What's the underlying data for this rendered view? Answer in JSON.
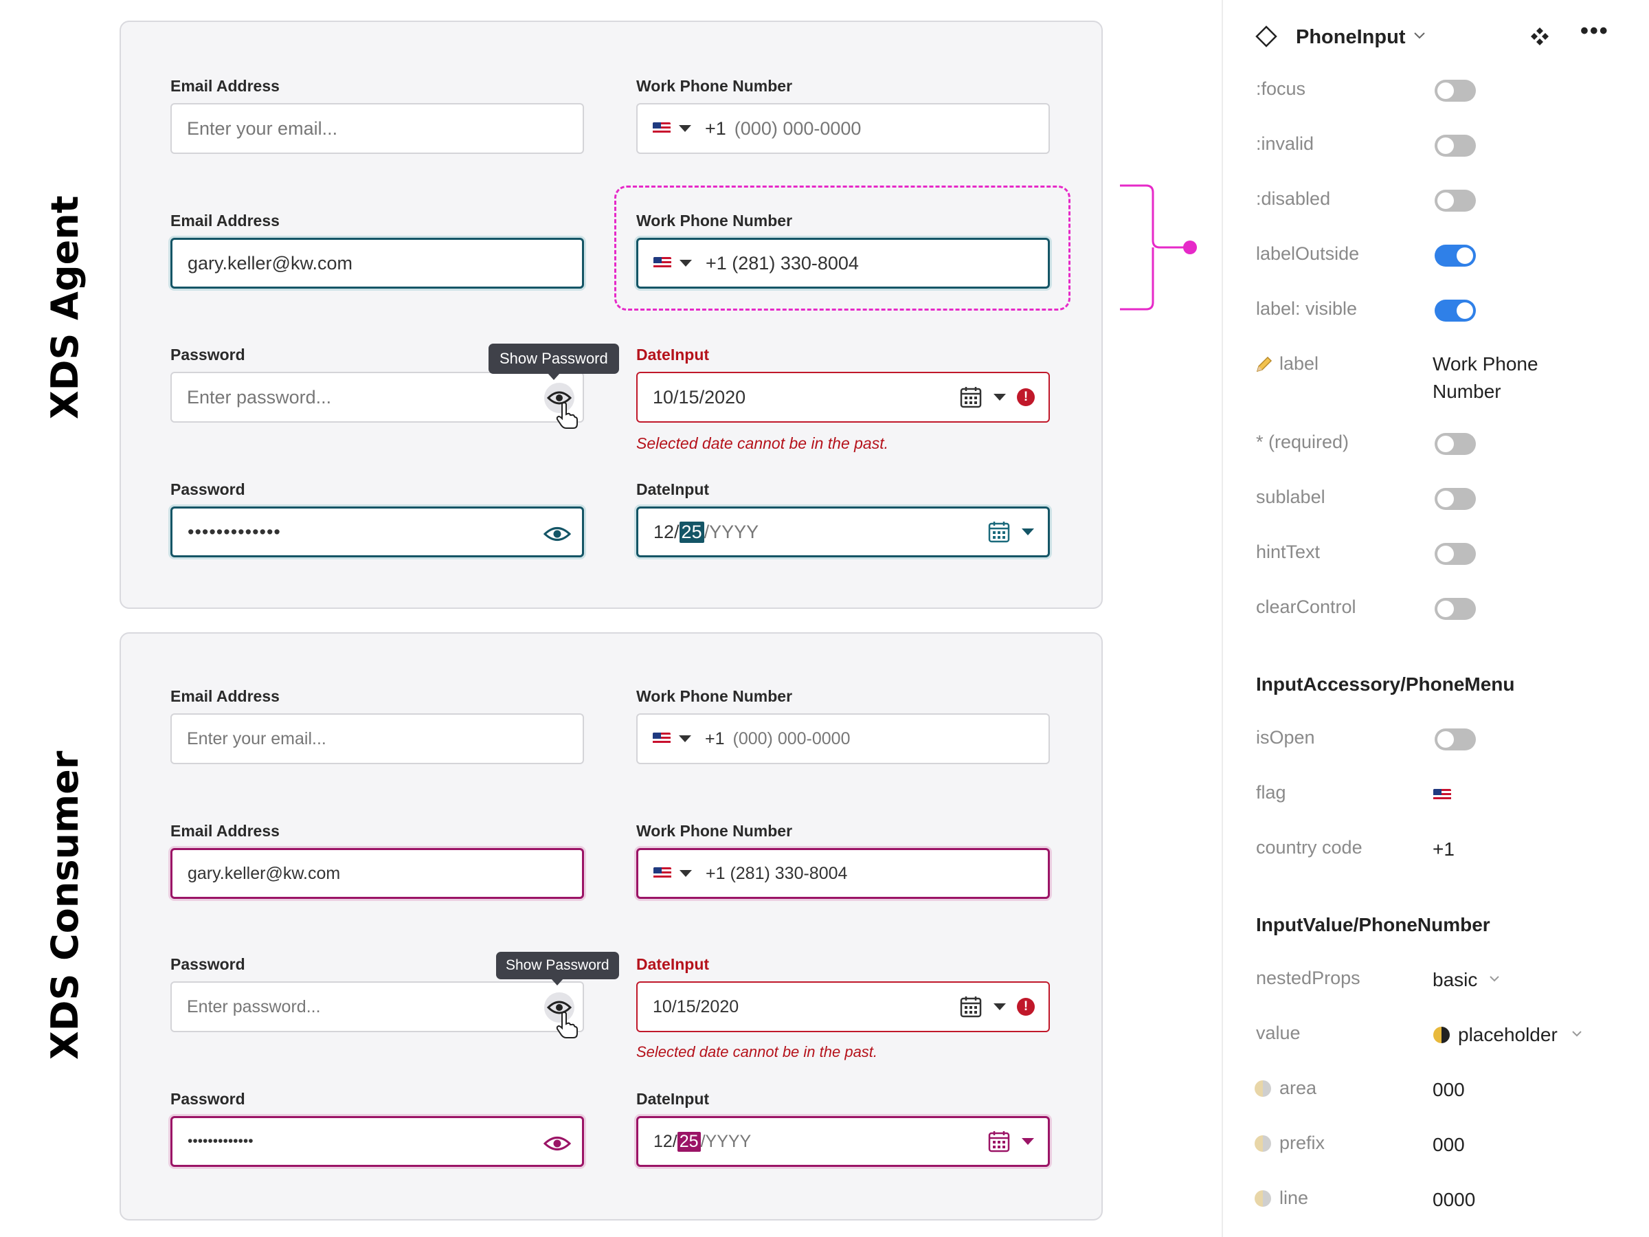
{
  "agent": {
    "title": "XDS Agent",
    "email1_label": "Email Address",
    "email1_placeholder": "Enter your email...",
    "phone1_label": "Work Phone Number",
    "phone1_value": "+1",
    "phone1_placeholder": "(000) 000-0000",
    "email2_label": "Email Address",
    "email2_value": "gary.keller@kw.com",
    "phone2_label": "Work Phone Number",
    "phone2_value": "+1 (281) 330-8004",
    "password1_label": "Password",
    "password1_placeholder": "Enter password...",
    "tooltip": "Show Password",
    "date1_label": "DateInput",
    "date1_value": "10/15/2020",
    "date_error": "Selected date cannot be in the past.",
    "password2_label": "Password",
    "password2_value": "•••••••••••••",
    "date2_label": "DateInput",
    "date2_month": "12/",
    "date2_day": "25",
    "date2_year": "/YYYY"
  },
  "consumer": {
    "title": "XDS Consumer",
    "email1_label": "Email Address",
    "email1_placeholder": "Enter your email...",
    "phone1_label": "Work Phone Number",
    "phone1_value": "+1",
    "phone1_placeholder": "(000) 000-0000",
    "email2_label": "Email Address",
    "email2_value": "gary.keller@kw.com",
    "phone2_label": "Work Phone Number",
    "phone2_value": "+1 (281) 330-8004",
    "password1_label": "Password",
    "password1_placeholder": "Enter password...",
    "tooltip": "Show Password",
    "date1_label": "DateInput",
    "date1_value": "10/15/2020",
    "date_error": "Selected date cannot be in the past.",
    "password2_label": "Password",
    "password2_value": "•••••••••••••",
    "date2_label": "DateInput",
    "date2_month": "12/",
    "date2_day": "25",
    "date2_year": "/YYYY"
  },
  "props": {
    "component_name": "PhoneInput",
    "toggles": [
      {
        "label": ":focus",
        "on": false
      },
      {
        "label": ":invalid",
        "on": false
      },
      {
        "label": ":disabled",
        "on": false
      },
      {
        "label": "labelOutside",
        "on": true
      },
      {
        "label": "label: visible",
        "on": true
      }
    ],
    "label_prop": "label",
    "label_value_line1": "Work Phone",
    "label_value_line2": "Number",
    "toggles2": [
      {
        "label": "* (required)",
        "on": false
      },
      {
        "label": "sublabel",
        "on": false
      },
      {
        "label": "hintText",
        "on": false
      },
      {
        "label": "clearControl",
        "on": false
      }
    ],
    "section1": "InputAccessory/PhoneMenu",
    "isopen_label": "isOpen",
    "flag_label": "flag",
    "country_code_label": "country code",
    "country_code_value": "+1",
    "section2": "InputValue/PhoneNumber",
    "nested_label": "nestedProps",
    "nested_value": "basic",
    "value_label": "value",
    "value_value": "placeholder",
    "area_label": "area",
    "area_value": "000",
    "prefix_label": "prefix",
    "prefix_value": "000",
    "line_label": "line",
    "line_value": "0000"
  },
  "colors": {
    "agent_focus": "#145566",
    "consumer_focus": "#9b1466",
    "error": "#c0182a",
    "annotation": "#e629c8",
    "toggle_on": "#2f80e8"
  }
}
